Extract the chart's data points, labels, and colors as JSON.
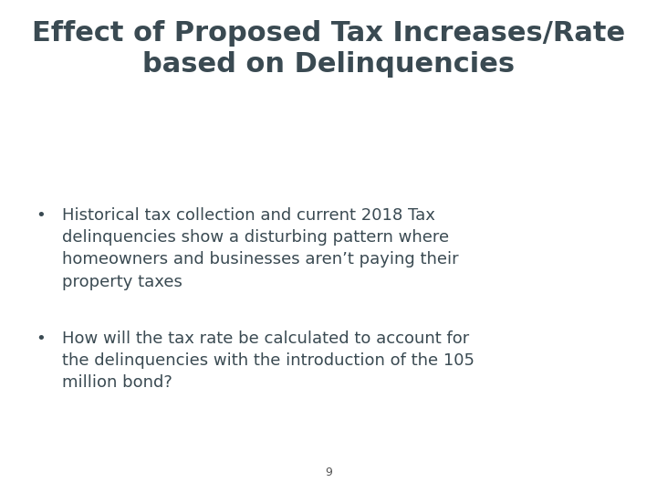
{
  "title_line1": "Effect of Proposed Tax Increases/Rate",
  "title_line2": "based on Delinquencies",
  "title_color": "#3a4a52",
  "title_fontsize": 22,
  "title_fontweight": "bold",
  "bullet1": "Historical tax collection and current 2018 Tax\ndelinquencies show a disturbing pattern where\nhomeowners and businesses aren’t paying their\nproperty taxes",
  "bullet2": "How will the tax rate be calculated to account for\nthe delinquencies with the introduction of the 105\nmillion bond?",
  "bullet_color": "#3a4a52",
  "bullet_fontsize": 13,
  "background_color": "#ffffff",
  "page_number": "9",
  "page_number_color": "#555555",
  "page_number_fontsize": 9
}
